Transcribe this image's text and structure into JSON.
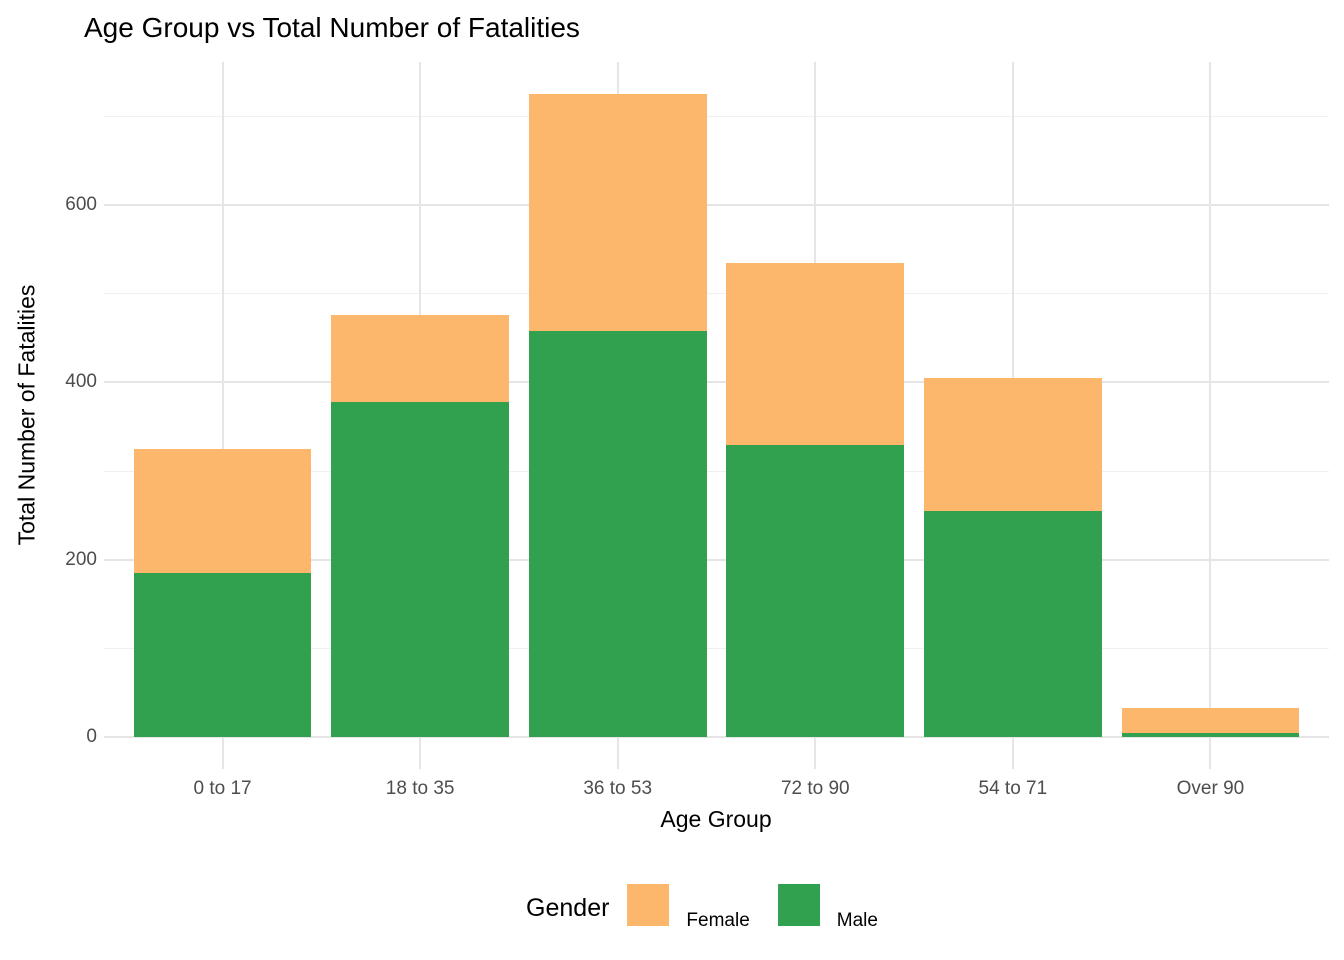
{
  "title": "Age Group vs Total Number of Fatalities",
  "axes": {
    "x_label": "Age Group",
    "y_label": "Total Number of Fatalities"
  },
  "legend": {
    "title": "Gender",
    "position": "bottom",
    "items": [
      {
        "label": "Female",
        "color": "#FDB76C"
      },
      {
        "label": "Male",
        "color": "#32A14F"
      }
    ]
  },
  "colors": {
    "female": "#FDB76C",
    "male": "#32A14F",
    "grid_major": "#E5E5E5",
    "grid_minor": "#F0F0F0",
    "axis_text": "#4D4D4D",
    "background": "#FFFFFF"
  },
  "chart_data": {
    "type": "bar",
    "stacked": true,
    "title": "Age Group vs Total Number of Fatalities",
    "xlabel": "Age Group",
    "ylabel": "Total Number of Fatalities",
    "categories": [
      "0 to 17",
      "18 to 35",
      "36 to 53",
      "72 to 90",
      "54 to 71",
      "Over 90"
    ],
    "series": [
      {
        "name": "Male",
        "color": "#32A14F",
        "values": [
          185,
          378,
          457,
          329,
          255,
          4
        ]
      },
      {
        "name": "Female",
        "color": "#FDB76C",
        "values": [
          140,
          97,
          268,
          205,
          149,
          29
        ]
      }
    ],
    "totals": [
      325,
      475,
      725,
      534,
      404,
      33
    ],
    "ylim": [
      0,
      760
    ],
    "y_major_ticks": [
      0,
      200,
      400,
      600
    ],
    "y_minor_ticks": [
      100,
      300,
      500,
      700
    ],
    "grid": true,
    "legend_position": "bottom"
  }
}
